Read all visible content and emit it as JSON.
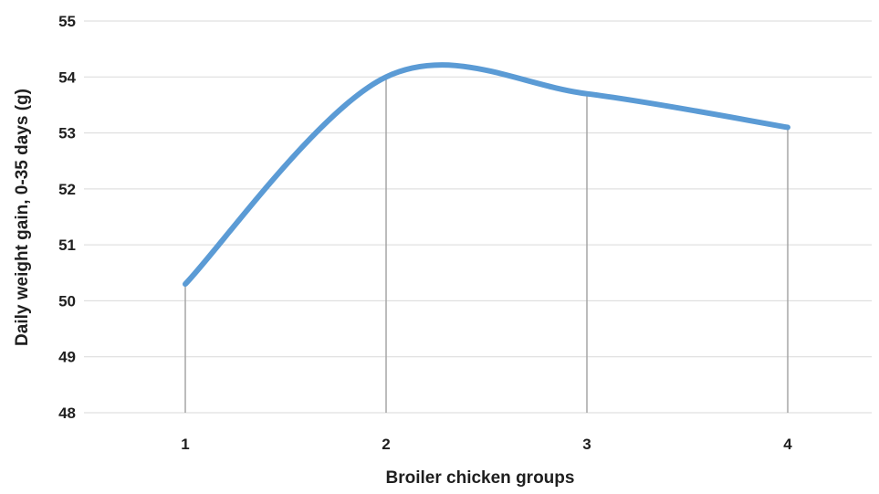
{
  "chart_data": {
    "type": "line",
    "title": "",
    "xlabel": "Broiler chicken groups",
    "ylabel": "Daily weight gain, 0-35 days (g)",
    "categories": [
      "1",
      "2",
      "3",
      "4"
    ],
    "series": [
      {
        "values": [
          50.3,
          54.0,
          53.7,
          53.1
        ],
        "color": "#5b9bd5"
      }
    ],
    "ylim": [
      48,
      55
    ],
    "yticks": [
      "48",
      "49",
      "50",
      "51",
      "52",
      "53",
      "54",
      "55"
    ],
    "grid": true,
    "smooth": true,
    "drop_lines": true,
    "legend": "none"
  }
}
